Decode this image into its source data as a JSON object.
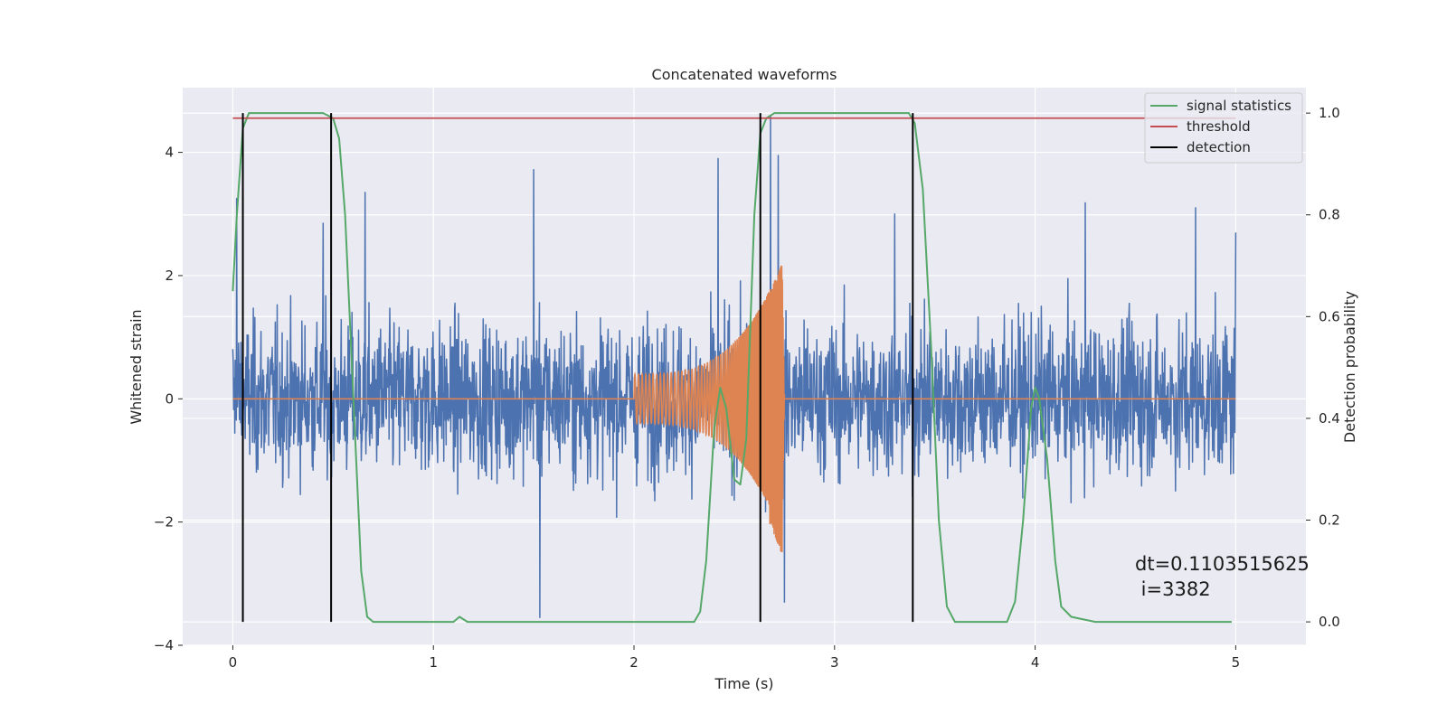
{
  "chart_data": {
    "type": "line",
    "title": "Concatenated waveforms",
    "xlabel": "Time (s)",
    "ylabel": "Whitened strain",
    "y2label": "Detection probability",
    "xlim": [
      -0.25,
      5.35
    ],
    "ylim": [
      -4.0,
      5.05
    ],
    "y2lim": [
      -0.046,
      1.05
    ],
    "x_ticks": [
      0,
      1,
      2,
      3,
      4,
      5
    ],
    "x_tick_labels": [
      "0",
      "1",
      "2",
      "3",
      "4",
      "5"
    ],
    "y_ticks": [
      -4,
      -2,
      0,
      2,
      4
    ],
    "y_tick_labels": [
      "−4",
      "−2",
      "0",
      "2",
      "4"
    ],
    "y2_ticks": [
      0.0,
      0.2,
      0.4,
      0.6,
      0.8,
      1.0
    ],
    "y2_tick_labels": [
      "0.0",
      "0.2",
      "0.4",
      "0.6",
      "0.8",
      "1.0"
    ],
    "grid": true,
    "legend_position": "top-right",
    "series": [
      {
        "name": "",
        "axis": "left",
        "kind": "noise",
        "color": "#4c72b0",
        "description": "whitened strain noise, amplitude mostly within ±2, peaks up to ~4.6",
        "x_range": [
          0,
          5
        ],
        "typical_amplitude": 2.0,
        "peak_values": [
          {
            "x": 0.02,
            "y": 3.25
          },
          {
            "x": 0.45,
            "y": 2.85
          },
          {
            "x": 0.66,
            "y": 3.35
          },
          {
            "x": 1.5,
            "y": 3.72
          },
          {
            "x": 1.53,
            "y": -3.55
          },
          {
            "x": 2.42,
            "y": 3.9
          },
          {
            "x": 2.68,
            "y": 4.6
          },
          {
            "x": 2.72,
            "y": 3.95
          },
          {
            "x": 2.75,
            "y": -3.3
          },
          {
            "x": 3.3,
            "y": 3.0
          },
          {
            "x": 4.25,
            "y": 3.18
          },
          {
            "x": 4.8,
            "y": 3.1
          },
          {
            "x": 5.0,
            "y": 2.7
          }
        ]
      },
      {
        "name": "",
        "axis": "left",
        "kind": "chirp",
        "color": "#dd8452",
        "description": "injected chirp waveform, zero outside 2.0–2.75 s",
        "x_range": [
          0,
          5
        ],
        "chirp_start": 2.0,
        "chirp_end": 2.75,
        "start_amplitude": 0.4,
        "peak_amplitude": 2.3,
        "min_value": -2.75
      },
      {
        "name": "signal statistics",
        "axis": "right",
        "color": "#55a868",
        "points": [
          [
            0.0,
            0.65
          ],
          [
            0.02,
            0.8
          ],
          [
            0.05,
            0.97
          ],
          [
            0.08,
            1.0
          ],
          [
            0.45,
            1.0
          ],
          [
            0.5,
            0.99
          ],
          [
            0.53,
            0.95
          ],
          [
            0.56,
            0.8
          ],
          [
            0.6,
            0.45
          ],
          [
            0.64,
            0.1
          ],
          [
            0.67,
            0.01
          ],
          [
            0.7,
            0.0
          ],
          [
            1.1,
            0.0
          ],
          [
            1.13,
            0.01
          ],
          [
            1.17,
            0.0
          ],
          [
            2.3,
            0.0
          ],
          [
            2.33,
            0.02
          ],
          [
            2.36,
            0.12
          ],
          [
            2.4,
            0.38
          ],
          [
            2.43,
            0.46
          ],
          [
            2.46,
            0.42
          ],
          [
            2.5,
            0.28
          ],
          [
            2.53,
            0.27
          ],
          [
            2.56,
            0.36
          ],
          [
            2.6,
            0.8
          ],
          [
            2.63,
            0.96
          ],
          [
            2.66,
            0.99
          ],
          [
            2.7,
            1.0
          ],
          [
            3.37,
            1.0
          ],
          [
            3.4,
            0.98
          ],
          [
            3.44,
            0.85
          ],
          [
            3.48,
            0.55
          ],
          [
            3.52,
            0.2
          ],
          [
            3.56,
            0.03
          ],
          [
            3.6,
            0.0
          ],
          [
            3.86,
            0.0
          ],
          [
            3.9,
            0.04
          ],
          [
            3.94,
            0.2
          ],
          [
            3.98,
            0.42
          ],
          [
            4.0,
            0.46
          ],
          [
            4.02,
            0.44
          ],
          [
            4.06,
            0.32
          ],
          [
            4.1,
            0.12
          ],
          [
            4.13,
            0.03
          ],
          [
            4.18,
            0.01
          ],
          [
            4.3,
            0.0
          ],
          [
            4.98,
            0.0
          ]
        ]
      },
      {
        "name": "threshold",
        "axis": "right",
        "color": "#c44e52",
        "x": [
          0.0,
          5.0
        ],
        "value": 0.99
      },
      {
        "name": "detection",
        "axis": "right",
        "color": "#000000",
        "x_values": [
          0.05,
          0.49,
          2.63,
          3.39
        ],
        "y_range": [
          0.0,
          1.0
        ]
      }
    ],
    "annotation": {
      "line1": "dt=0.1103515625",
      "line2": " i=3382",
      "x": 4.5,
      "y": -2.5
    }
  }
}
